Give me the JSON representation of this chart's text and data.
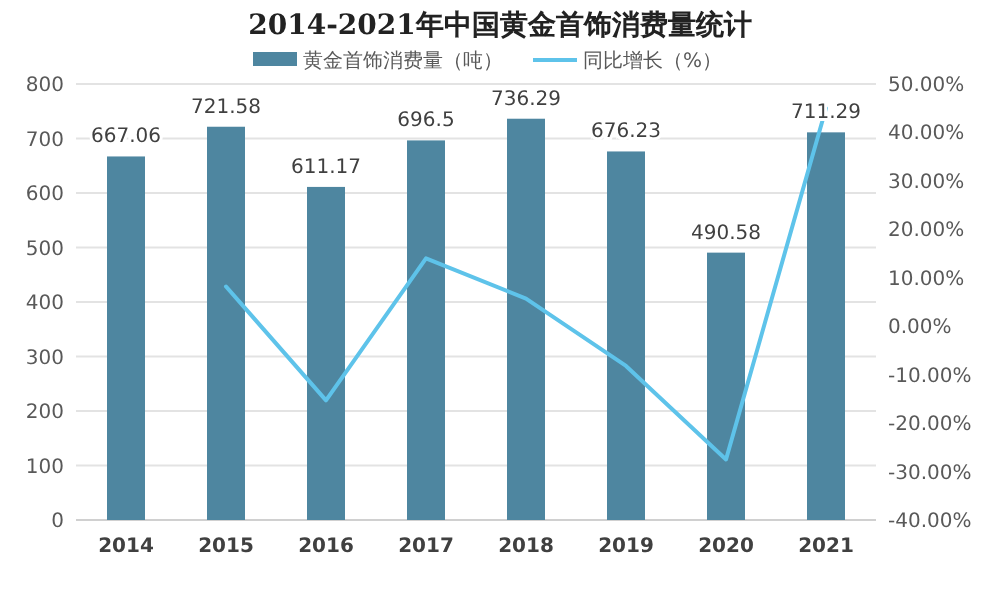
{
  "chart_data": {
    "type": "bar",
    "title": "2014-2021年中国黄金首饰消费量统计",
    "categories": [
      "2014",
      "2015",
      "2016",
      "2017",
      "2018",
      "2019",
      "2020",
      "2021"
    ],
    "series": [
      {
        "name": "黄金首饰消费量（吨）",
        "color": "#4e86a0",
        "values": [
          667.06,
          721.58,
          611.17,
          696.5,
          736.29,
          676.23,
          490.58,
          711.29
        ],
        "value_labels": [
          "667.06",
          "721.58",
          "611.17",
          "696.5",
          "736.29",
          "676.23",
          "490.58",
          "711.29"
        ]
      },
      {
        "name": "同比增长（%）",
        "type": "line",
        "axis": "y2",
        "color": "#5ec3ea",
        "values": [
          null,
          8.2,
          -15.3,
          14.0,
          5.7,
          -8.2,
          -27.5,
          45.0
        ]
      }
    ],
    "ylim": [
      0,
      800
    ],
    "yticks": [
      0,
      100,
      200,
      300,
      400,
      500,
      600,
      700,
      800
    ],
    "y2lim": [
      -40,
      50
    ],
    "y2ticks": [
      {
        "value": -40,
        "label": "-40.00%"
      },
      {
        "value": -30,
        "label": "-30.00%"
      },
      {
        "value": -20,
        "label": "-20.00%"
      },
      {
        "value": -10,
        "label": "-10.00%"
      },
      {
        "value": 0,
        "label": "0.00%"
      },
      {
        "value": 10,
        "label": "10.00%"
      },
      {
        "value": 20,
        "label": "20.00%"
      },
      {
        "value": 30,
        "label": "30.00%"
      },
      {
        "value": 40,
        "label": "40.00%"
      },
      {
        "value": 50,
        "label": "50.00%"
      }
    ],
    "grid": "y",
    "legend": "top",
    "marker": "none",
    "line_style": "solid"
  }
}
